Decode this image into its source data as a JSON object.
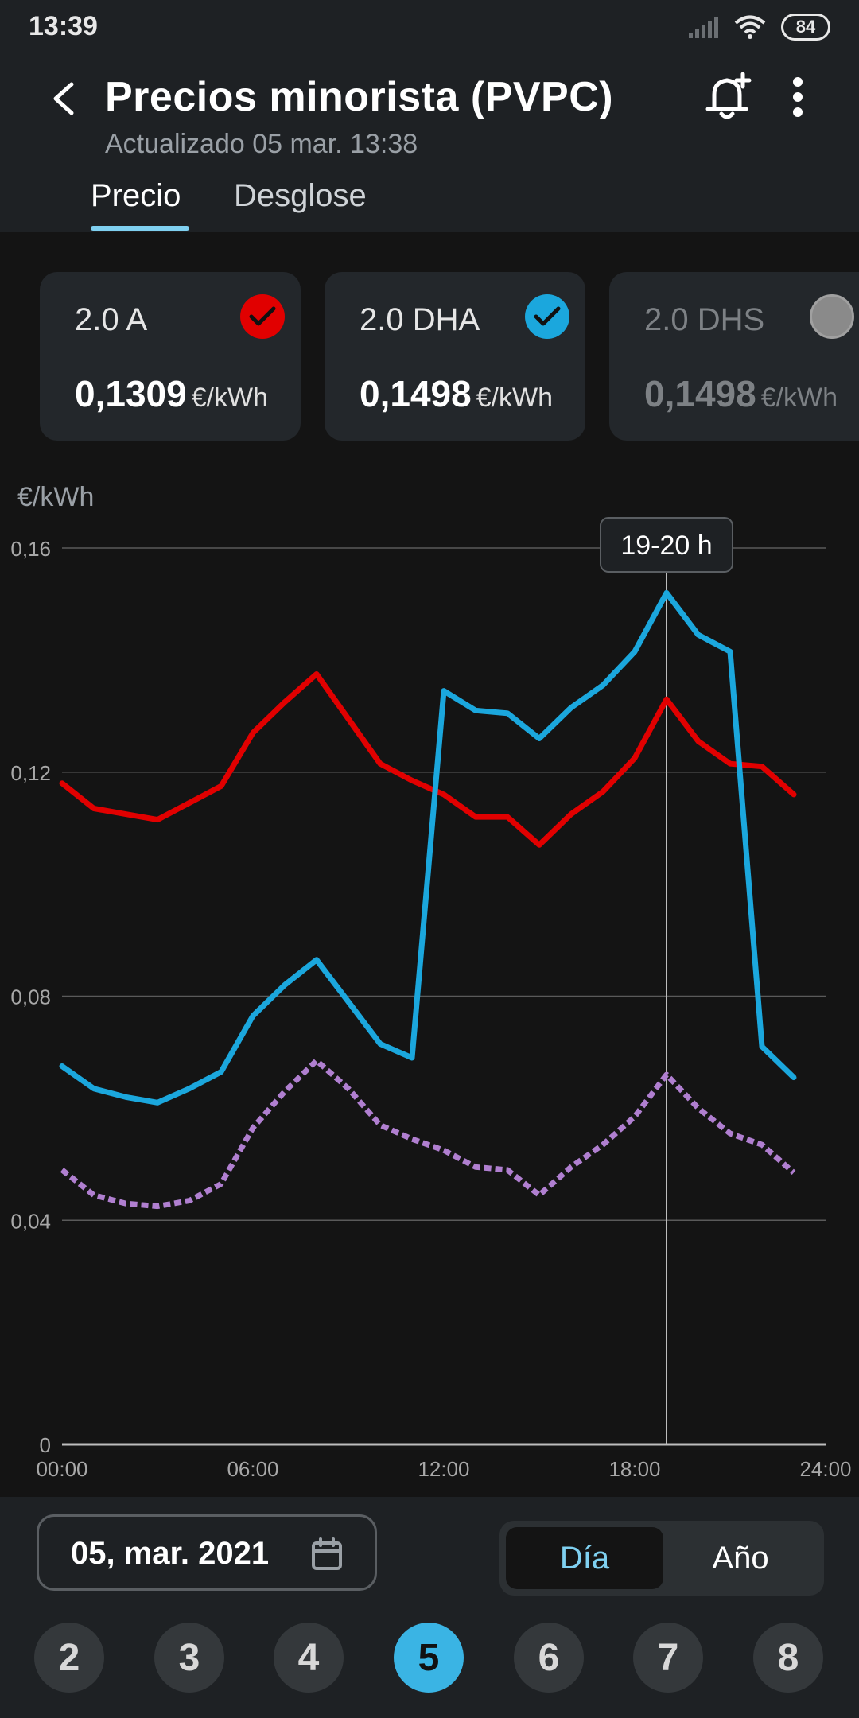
{
  "status_bar": {
    "time": "13:39",
    "battery": "84"
  },
  "header": {
    "title": "Precios minorista (PVPC)",
    "subtitle": "Actualizado 05 mar. 13:38",
    "tabs": [
      {
        "label": "Precio",
        "active": true
      },
      {
        "label": "Desglose",
        "active": false
      }
    ]
  },
  "tariffs": [
    {
      "name": "2.0 A",
      "value": "0,1309",
      "unit": "€/kWh",
      "checked": true,
      "color": "#e10000"
    },
    {
      "name": "2.0 DHA",
      "value": "0,1498",
      "unit": "€/kWh",
      "checked": true,
      "color": "#1ba7dd"
    },
    {
      "name": "2.0 DHS",
      "value": "0,1498",
      "unit": "€/kWh",
      "checked": false,
      "color": "#8a8a8a"
    }
  ],
  "chart_data": {
    "type": "line",
    "ylabel": "€/kWh",
    "y_ticks": [
      "0,16",
      "0,12",
      "0,08",
      "0,04",
      "0"
    ],
    "x_ticks": [
      "00:00",
      "06:00",
      "12:00",
      "18:00",
      "24:00"
    ],
    "xlim": [
      0,
      24
    ],
    "ylim": [
      0,
      0.16
    ],
    "grid": true,
    "x": [
      0,
      1,
      2,
      3,
      4,
      5,
      6,
      7,
      8,
      9,
      10,
      11,
      12,
      13,
      14,
      15,
      16,
      17,
      18,
      19,
      20,
      21,
      22,
      23
    ],
    "series": [
      {
        "color": "#e10000",
        "style": "solid",
        "values": [
          0.118,
          0.1135,
          0.1125,
          0.1115,
          0.1145,
          0.1175,
          0.127,
          0.1325,
          0.1375,
          0.1295,
          0.1215,
          0.1185,
          0.116,
          0.112,
          0.112,
          0.107,
          0.1125,
          0.1165,
          0.1225,
          0.133,
          0.1255,
          0.1215,
          0.121,
          0.116
        ]
      },
      {
        "color": "#1ba7dd",
        "style": "solid",
        "values": [
          0.0675,
          0.0635,
          0.062,
          0.061,
          0.0635,
          0.0665,
          0.0765,
          0.082,
          0.0865,
          0.079,
          0.0715,
          0.069,
          0.1345,
          0.131,
          0.1305,
          0.126,
          0.1315,
          0.1355,
          0.1415,
          0.152,
          0.1445,
          0.1415,
          0.071,
          0.0655
        ]
      },
      {
        "color": "#b07fd0",
        "style": "dotted",
        "values": [
          0.049,
          0.0445,
          0.043,
          0.0425,
          0.0435,
          0.0465,
          0.0565,
          0.063,
          0.0685,
          0.0635,
          0.057,
          0.0545,
          0.0525,
          0.0495,
          0.049,
          0.0445,
          0.0495,
          0.0535,
          0.0585,
          0.066,
          0.06,
          0.0555,
          0.0535,
          0.0485
        ]
      }
    ],
    "cursor": {
      "x": 19,
      "label": "19-20 h"
    }
  },
  "footer": {
    "date": "05, mar. 2021",
    "mode_options": [
      "Día",
      "Año"
    ],
    "selected_mode": "Día",
    "days": [
      "2",
      "3",
      "4",
      "5",
      "6",
      "7",
      "8"
    ],
    "selected_day": "5"
  }
}
